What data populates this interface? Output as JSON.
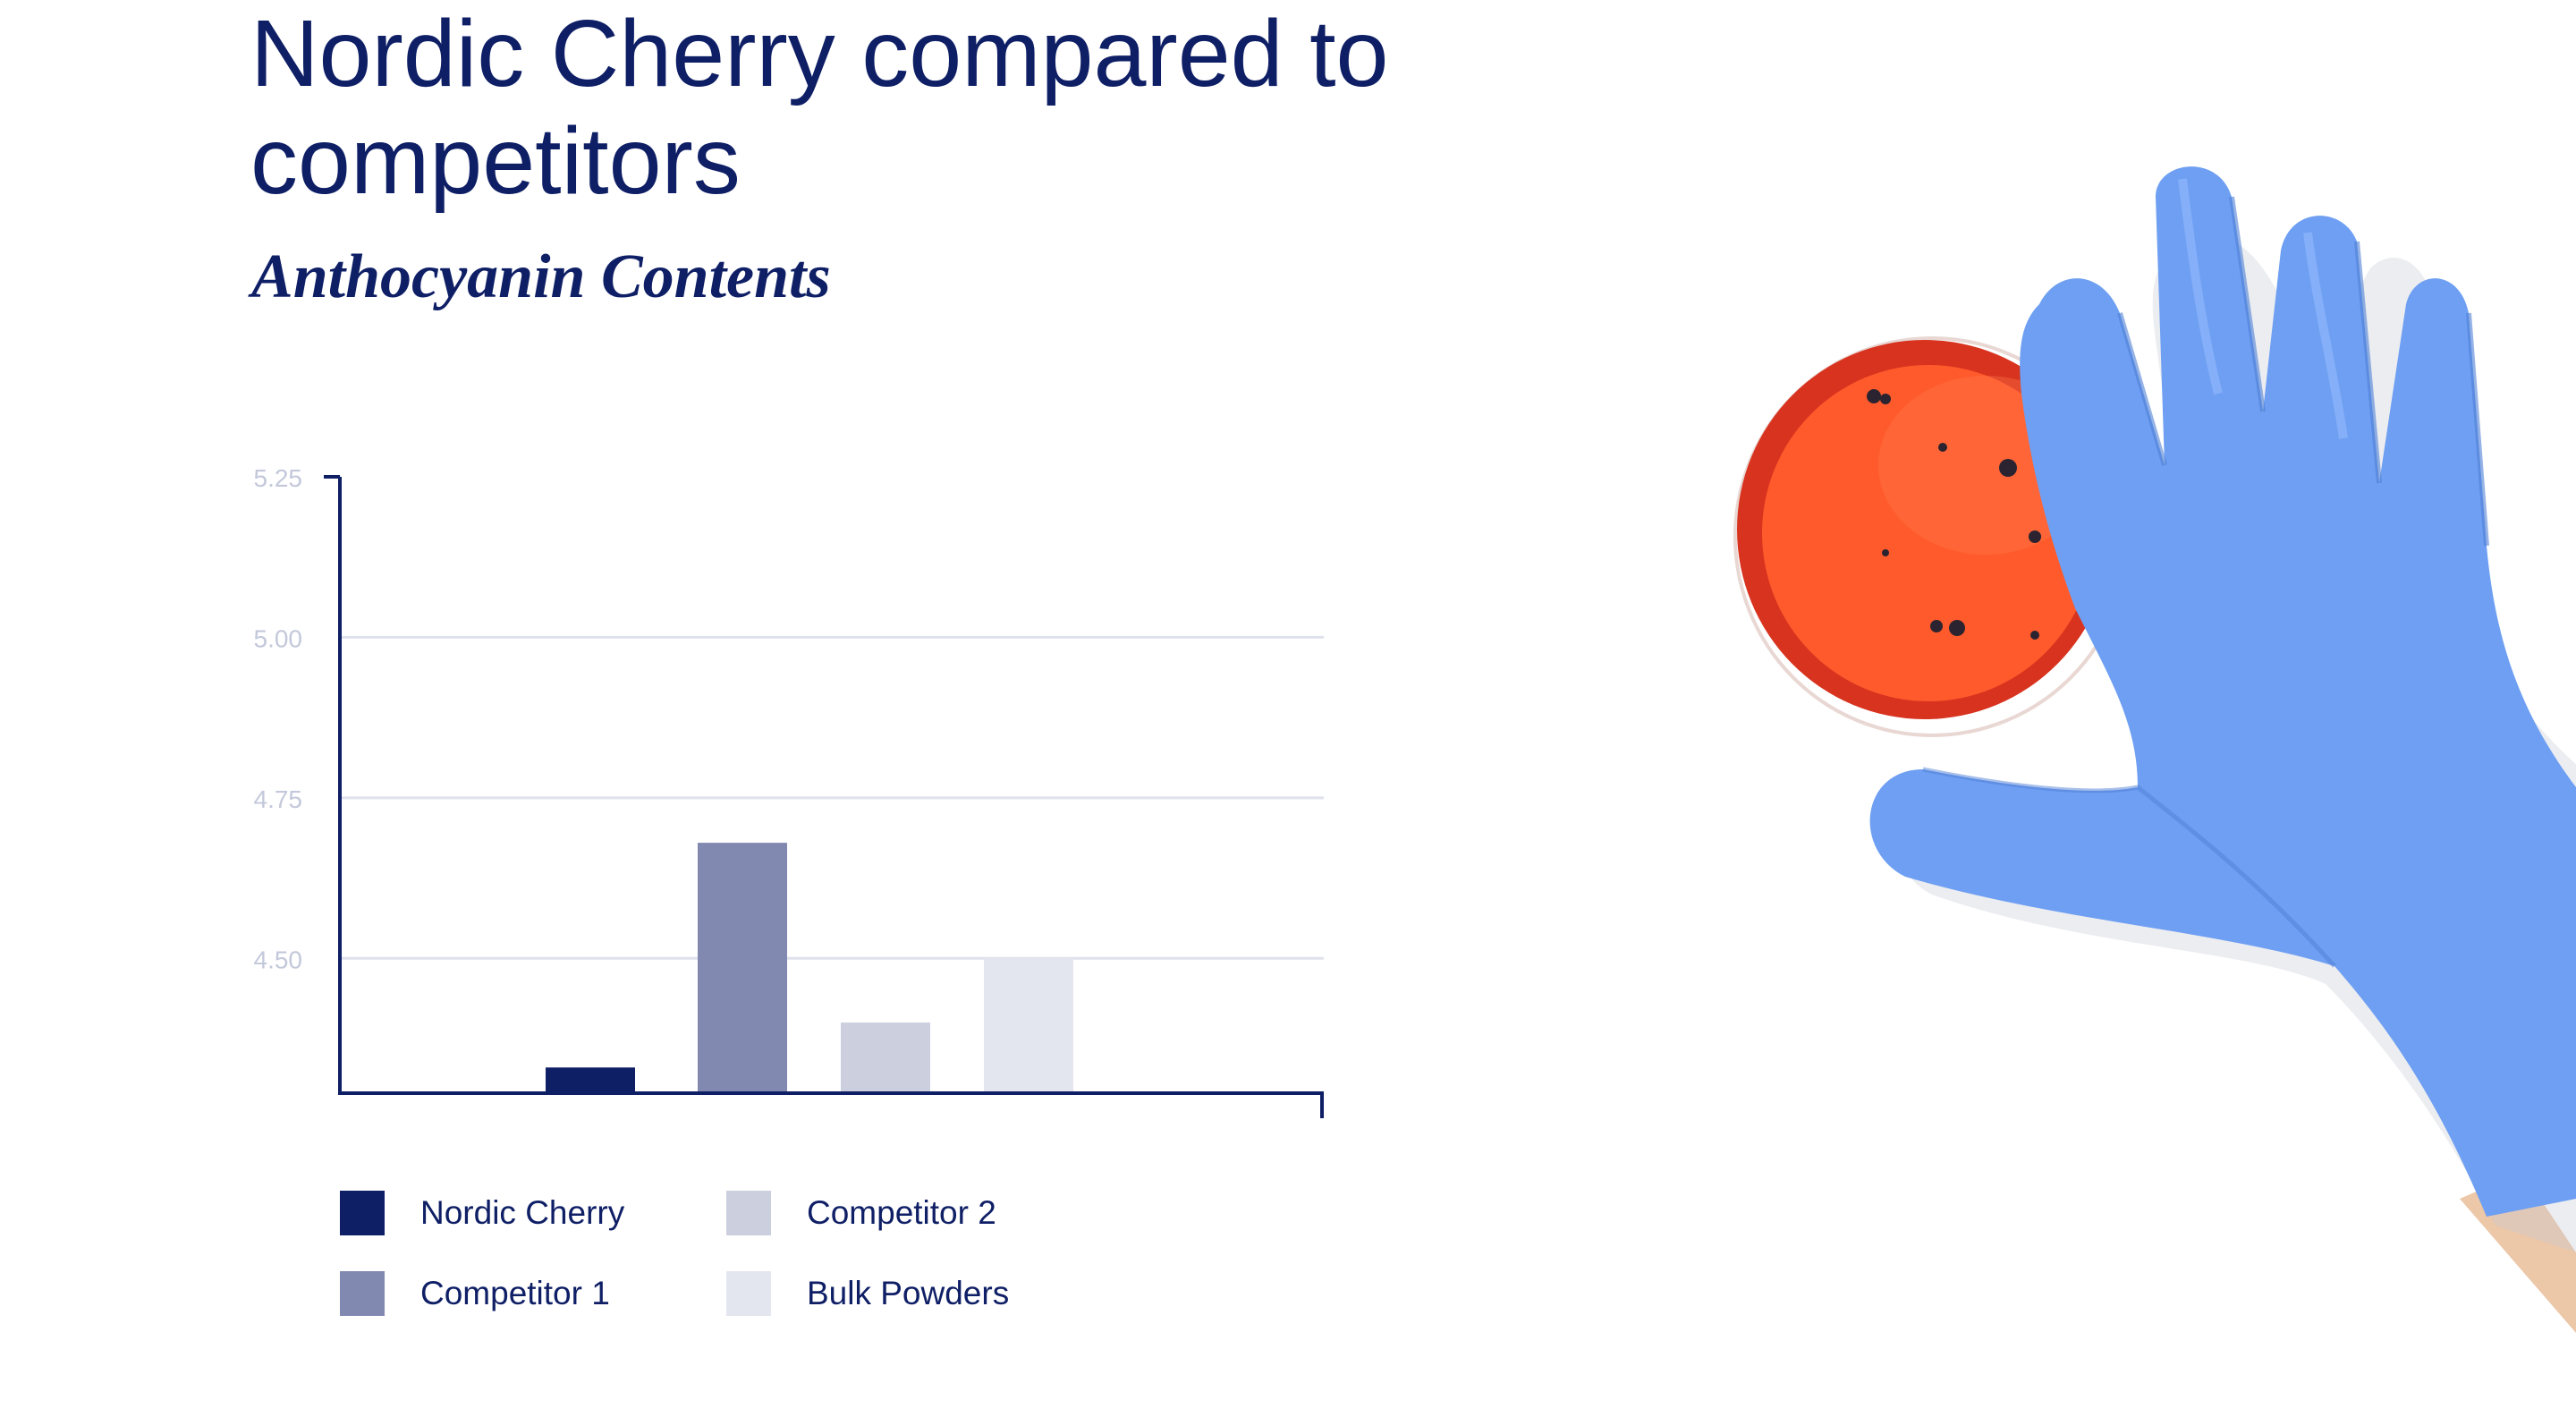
{
  "header": {
    "title": "Nordic Cherry compared to competitors",
    "subtitle": "Anthocyanin Contents"
  },
  "colors": {
    "text": "#0f1f66",
    "axis": "#0f1f66",
    "grid": "#dfe2ec",
    "tick_label": "#c3c8da"
  },
  "chart_data": {
    "type": "bar",
    "categories": [
      "Nordic Cherry",
      "Competitor 1",
      "Competitor 2",
      "Bulk Powders"
    ],
    "series": [
      {
        "values": [
          4.33,
          4.68,
          4.4,
          4.5
        ]
      }
    ],
    "colors": [
      "#0f1f66",
      "#8289b0",
      "#ccd0de",
      "#e4e6ef"
    ],
    "yticks": [
      "5.25",
      "5.00",
      "4.75",
      "4.50"
    ],
    "ytick_values": [
      5.25,
      5.0,
      4.75,
      4.5
    ],
    "ylim": [
      4.29,
      5.25
    ],
    "xlabel": "",
    "ylabel": "",
    "grid": true,
    "legend": "bottom"
  },
  "legend": {
    "items": [
      {
        "label": "Nordic Cherry",
        "color": "#0f1f66"
      },
      {
        "label": "Competitor 2",
        "color": "#ccd0de"
      },
      {
        "label": "Competitor 1",
        "color": "#8289b0"
      },
      {
        "label": "Bulk Powders",
        "color": "#e4e6ef"
      }
    ]
  },
  "image": {
    "description_icon": "gloved-hand-holding-petri-dish"
  }
}
